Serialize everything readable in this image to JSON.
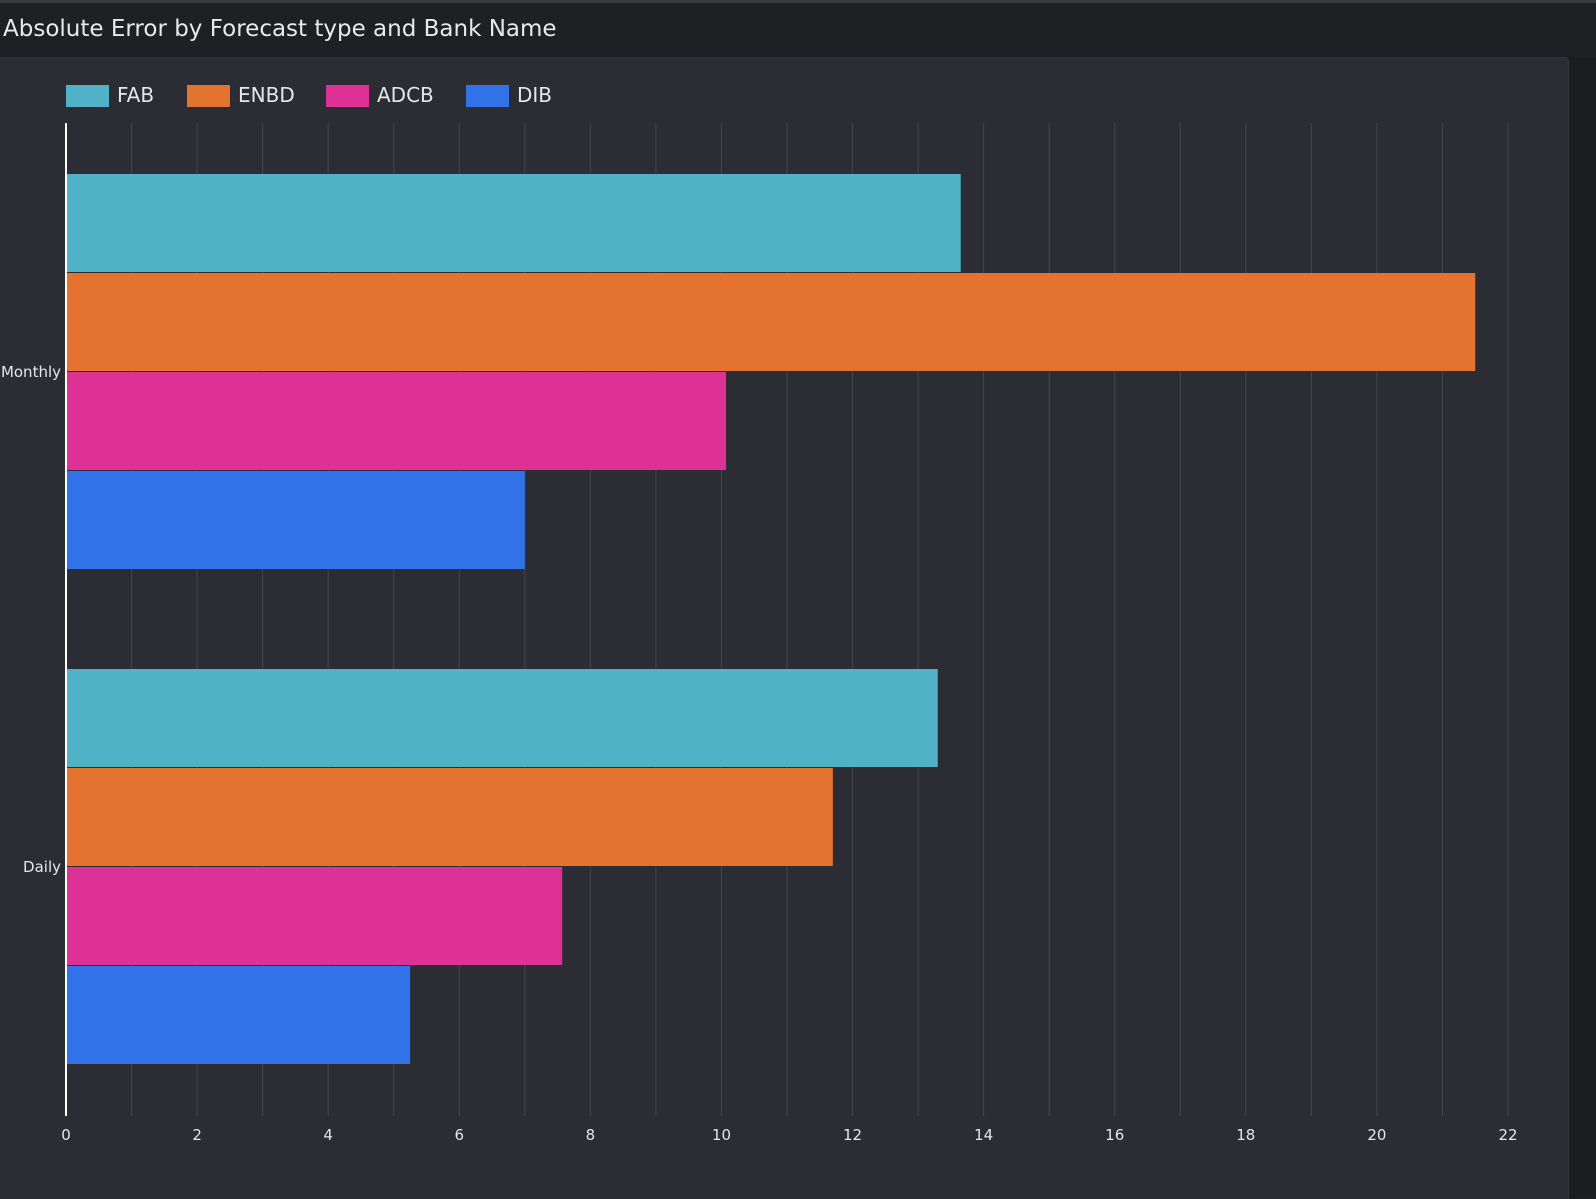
{
  "title": "Absolute Error by Forecast type and Bank Name",
  "colors": {
    "FAB": "#4fb2c6",
    "ENBD": "#e4732f",
    "ADCB": "#de3195",
    "DIB": "#3172e8",
    "background": "#1f2024",
    "panel": "#2c2d34",
    "grid": "#45464d",
    "axis": "#ffffff"
  },
  "chart_data": {
    "type": "bar",
    "orientation": "horizontal",
    "categories": [
      "Monthly",
      "Daily"
    ],
    "series": [
      {
        "name": "FAB",
        "values": [
          13.65,
          13.3
        ]
      },
      {
        "name": "ENBD",
        "values": [
          21.5,
          11.7
        ]
      },
      {
        "name": "ADCB",
        "values": [
          10.07,
          7.57
        ]
      },
      {
        "name": "DIB",
        "values": [
          7.0,
          5.25
        ]
      }
    ],
    "xlim": [
      0,
      22
    ],
    "xticks": [
      "0",
      "2",
      "4",
      "6",
      "8",
      "10",
      "12",
      "14",
      "16",
      "18",
      "20",
      "22"
    ],
    "grid": true,
    "legend_position": "top-left"
  }
}
